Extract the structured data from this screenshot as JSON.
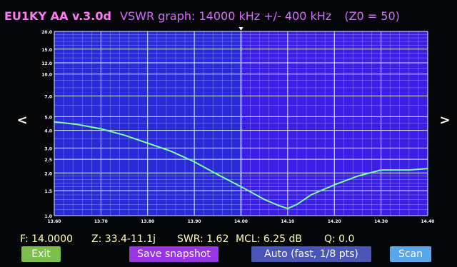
{
  "header": {
    "app": "EU1KY AA v.3.0d",
    "graph": "VSWR graph: 14000 kHz +/- 400 kHz",
    "z0": "(Z0 = 50)"
  },
  "nav": {
    "left": "<",
    "right": ">"
  },
  "readout": {
    "freq": "F: 14.0000",
    "impedance": "Z: 33.4-11.1j",
    "swr": "SWR: 1.62",
    "mcl": "MCL: 6.25 dB",
    "q": "Q: 0.0"
  },
  "buttons": {
    "exit": "Exit",
    "save": "Save snapshot",
    "auto": "Auto (fast, 1/8 pts)",
    "scan": "Scan"
  },
  "colors": {
    "plot_bg": "#2a2ad8",
    "plot_highlight": "#3c1ee6",
    "grid": "#d8ecff",
    "curve": "#7dff9a",
    "header_app": "#ff7cf4",
    "header_text": "#d46cff",
    "readout_text": "#ffffb0"
  },
  "chart_data": {
    "type": "line",
    "title": "VSWR graph: 14000 kHz +/- 400 kHz",
    "x_ticks": [
      "13.60",
      "13.70",
      "13.80",
      "13.90",
      "14.00",
      "14.10",
      "14.20",
      "14.30",
      "14.40"
    ],
    "y_ticks": [
      "20.0",
      "15.0",
      "12.0",
      "10.0",
      "7.0",
      "5.0",
      "4.0",
      "3.0",
      "2.5",
      "2.0",
      "1.5",
      "1.0"
    ],
    "xlim": [
      13.6,
      14.4
    ],
    "ylim": [
      1.0,
      20.0
    ],
    "y_scale": "log",
    "grid": true,
    "highlight_range": [
      14.0,
      14.4
    ],
    "series": [
      {
        "x": [
          13.6,
          13.65,
          13.7,
          13.75,
          13.8,
          13.85,
          13.9,
          13.95,
          14.0,
          14.05,
          14.08,
          14.1,
          14.12,
          14.15,
          14.2,
          14.25,
          14.3,
          14.33,
          14.36,
          14.4
        ],
        "y": [
          4.6,
          4.4,
          4.1,
          3.7,
          3.25,
          2.85,
          2.4,
          1.95,
          1.6,
          1.3,
          1.18,
          1.12,
          1.2,
          1.4,
          1.65,
          1.9,
          2.1,
          2.1,
          2.1,
          2.15
        ]
      }
    ]
  }
}
